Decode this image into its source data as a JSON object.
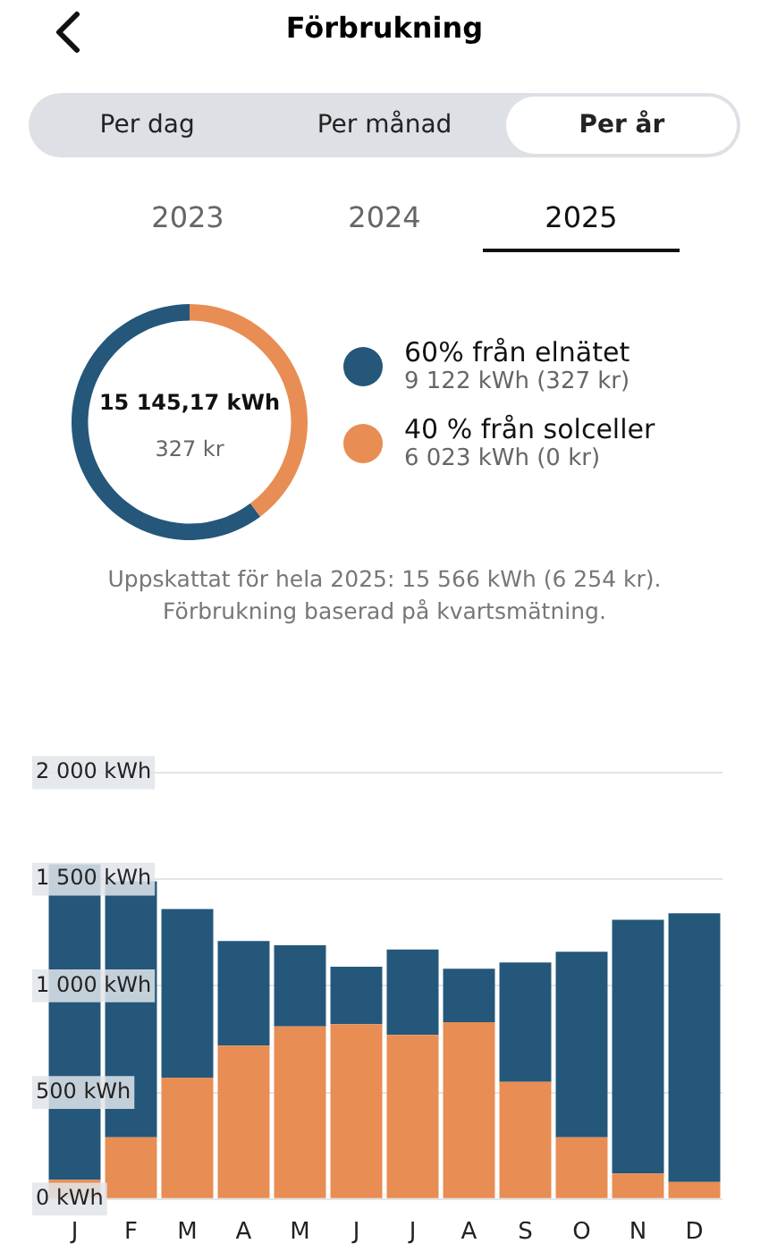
{
  "chart_data": [
    {
      "type": "other",
      "title": "Förbrukning",
      "annotations": [
        "Per dag",
        "Per månad",
        "Per år",
        "2023",
        "2024",
        "2025"
      ]
    },
    {
      "type": "donut",
      "categories": [
        "60% från elnätet",
        "40 % från solceller"
      ],
      "values": [
        9122,
        6023
      ],
      "colors": [
        "#24577a",
        "#e88d53"
      ],
      "value_labels": [
        "9 122 kWh (327 kr)",
        "6 023 kWh (0 kr)"
      ],
      "legend": "right",
      "annotations": [
        "15 145,17 kWh",
        "327 kr",
        "Uppskattat för hela 2025: 15 566 kWh (6 254 kr).",
        "Förbrukning baserad på kvartsmätning."
      ]
    },
    {
      "type": "bar",
      "stacked": true,
      "categories": [
        "J",
        "F",
        "M",
        "A",
        "M",
        "J",
        "J",
        "A",
        "S",
        "O",
        "N",
        "D"
      ],
      "series": [
        {
          "color": "#e88d53",
          "values": [
            90,
            290,
            570,
            720,
            810,
            820,
            770,
            830,
            550,
            290,
            120,
            80
          ]
        },
        {
          "color": "#24577a",
          "values": [
            1480,
            1200,
            790,
            490,
            380,
            270,
            400,
            250,
            560,
            870,
            1190,
            1260
          ]
        }
      ],
      "ylim": [
        0,
        2000
      ],
      "yticks": [
        {
          "value": 0,
          "label": "0 kWh"
        },
        {
          "value": 500,
          "label": "500 kWh"
        },
        {
          "value": 1000,
          "label": "1 000 kWh"
        },
        {
          "value": 1500,
          "label": "1 500 kWh"
        },
        {
          "value": 2000,
          "label": "2 000 kWh"
        }
      ],
      "grid": "y",
      "legend": false
    }
  ]
}
